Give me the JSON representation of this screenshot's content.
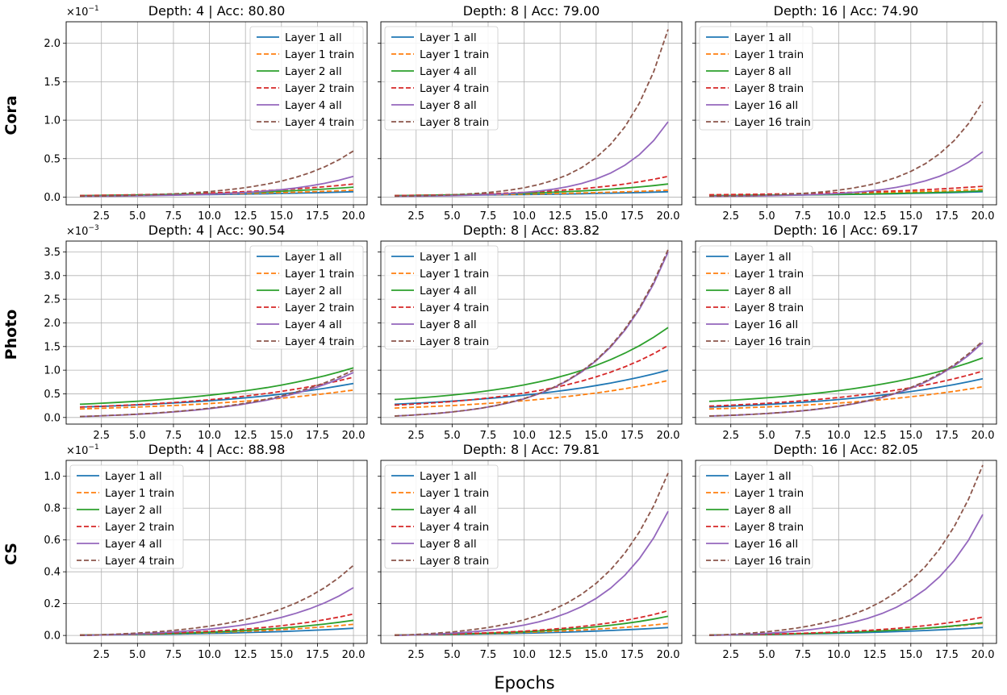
{
  "figure": {
    "xlabel": "Epochs",
    "row_labels": [
      "Cora",
      "Photo",
      "CS"
    ],
    "colors": {
      "layer_1_all": "#1f77b4",
      "layer_1_train": "#ff7f0e",
      "layer_mid_all": "#2ca02c",
      "layer_mid_train": "#d62728",
      "layer_last_all": "#9467bd",
      "layer_last_train": "#8c564b"
    }
  },
  "chart_data": [
    {
      "type": "line",
      "row": "Cora",
      "title": "Depth: 4 | Acc: 80.80",
      "scale_label": "×10^−1",
      "x_ticks": [
        "2.5",
        "5.0",
        "7.5",
        "10.0",
        "12.5",
        "15.0",
        "17.5",
        "20.0"
      ],
      "ylim": [
        -0.1,
        2.28
      ],
      "y_ticks": [
        0.0,
        0.5,
        1.0,
        1.5,
        2.0
      ],
      "y_tick_labels": [
        "0.0",
        "0.5",
        "1.0",
        "1.5",
        "2.0"
      ],
      "legend_pos": "upper-right",
      "series": [
        {
          "name": "Layer 1 all",
          "style": "solid",
          "color": "#1f77b4",
          "start": 0.02,
          "end": 0.07,
          "curve": 1.8
        },
        {
          "name": "Layer 1 train",
          "style": "dashed",
          "color": "#ff7f0e",
          "start": 0.02,
          "end": 0.09,
          "curve": 1.8
        },
        {
          "name": "Layer 2 all",
          "style": "solid",
          "color": "#2ca02c",
          "start": 0.02,
          "end": 0.13,
          "curve": 2.2
        },
        {
          "name": "Layer 2 train",
          "style": "dashed",
          "color": "#d62728",
          "start": 0.02,
          "end": 0.17,
          "curve": 2.2
        },
        {
          "name": "Layer 4 all",
          "style": "solid",
          "color": "#9467bd",
          "start": 0.01,
          "end": 0.27,
          "curve": 4
        },
        {
          "name": "Layer 4 train",
          "style": "dashed",
          "color": "#8c564b",
          "start": 0.01,
          "end": 0.6,
          "curve": 4
        }
      ]
    },
    {
      "type": "line",
      "row": "Cora",
      "title": "Depth: 8 | Acc: 79.00",
      "scale_label": "",
      "x_ticks": [
        "2.5",
        "5.0",
        "7.5",
        "10.0",
        "12.5",
        "15.0",
        "17.5",
        "20.0"
      ],
      "ylim": [
        -0.1,
        2.28
      ],
      "y_ticks": [
        0.0,
        0.5,
        1.0,
        1.5,
        2.0
      ],
      "y_tick_labels": [
        "",
        "",
        "",
        "",
        ""
      ],
      "legend_pos": "upper-left",
      "series": [
        {
          "name": "Layer 1 all",
          "style": "solid",
          "color": "#1f77b4",
          "start": 0.02,
          "end": 0.07,
          "curve": 1.8
        },
        {
          "name": "Layer 1 train",
          "style": "dashed",
          "color": "#ff7f0e",
          "start": 0.02,
          "end": 0.09,
          "curve": 1.8
        },
        {
          "name": "Layer 4 all",
          "style": "solid",
          "color": "#2ca02c",
          "start": 0.02,
          "end": 0.17,
          "curve": 2.5
        },
        {
          "name": "Layer 4 train",
          "style": "dashed",
          "color": "#d62728",
          "start": 0.02,
          "end": 0.27,
          "curve": 3
        },
        {
          "name": "Layer 8 all",
          "style": "solid",
          "color": "#9467bd",
          "start": 0.01,
          "end": 0.98,
          "curve": 5.5
        },
        {
          "name": "Layer 8 train",
          "style": "dashed",
          "color": "#8c564b",
          "start": 0.01,
          "end": 2.18,
          "curve": 5.5
        }
      ]
    },
    {
      "type": "line",
      "row": "Cora",
      "title": "Depth: 16 | Acc: 74.90",
      "scale_label": "",
      "x_ticks": [
        "2.5",
        "5.0",
        "7.5",
        "10.0",
        "12.5",
        "15.0",
        "17.5",
        "20.0"
      ],
      "ylim": [
        -0.1,
        2.28
      ],
      "y_ticks": [
        0.0,
        0.5,
        1.0,
        1.5,
        2.0
      ],
      "y_tick_labels": [
        "",
        "",
        "",
        "",
        ""
      ],
      "legend_pos": "upper-left",
      "series": [
        {
          "name": "Layer 1 all",
          "style": "solid",
          "color": "#1f77b4",
          "start": 0.02,
          "end": 0.07,
          "curve": 1.8
        },
        {
          "name": "Layer 1 train",
          "style": "dashed",
          "color": "#ff7f0e",
          "start": 0.03,
          "end": 0.1,
          "curve": 1.8
        },
        {
          "name": "Layer 8 all",
          "style": "solid",
          "color": "#2ca02c",
          "start": 0.02,
          "end": 0.08,
          "curve": 2
        },
        {
          "name": "Layer 8 train",
          "style": "dashed",
          "color": "#d62728",
          "start": 0.03,
          "end": 0.14,
          "curve": 2
        },
        {
          "name": "Layer 16 all",
          "style": "solid",
          "color": "#9467bd",
          "start": 0.01,
          "end": 0.59,
          "curve": 5
        },
        {
          "name": "Layer 16 train",
          "style": "dashed",
          "color": "#8c564b",
          "start": 0.01,
          "end": 1.24,
          "curve": 5
        }
      ]
    },
    {
      "type": "line",
      "row": "Photo",
      "title": "Depth: 4 | Acc: 90.54",
      "scale_label": "×10^−3",
      "x_ticks": [
        "2.5",
        "5.0",
        "7.5",
        "10.0",
        "12.5",
        "15.0",
        "17.5",
        "20.0"
      ],
      "ylim": [
        -0.14,
        3.73
      ],
      "y_ticks": [
        0.0,
        0.5,
        1.0,
        1.5,
        2.0,
        2.5,
        3.0,
        3.5
      ],
      "y_tick_labels": [
        "0.0",
        "0.5",
        "1.0",
        "1.5",
        "2.0",
        "2.5",
        "3.0",
        "3.5"
      ],
      "legend_pos": "upper-right",
      "series": [
        {
          "name": "Layer 1 all",
          "style": "solid",
          "color": "#1f77b4",
          "start": 0.22,
          "end": 0.72,
          "curve": 1.8
        },
        {
          "name": "Layer 1 train",
          "style": "dashed",
          "color": "#ff7f0e",
          "start": 0.18,
          "end": 0.58,
          "curve": 1.6
        },
        {
          "name": "Layer 2 all",
          "style": "solid",
          "color": "#2ca02c",
          "start": 0.28,
          "end": 1.05,
          "curve": 2
        },
        {
          "name": "Layer 2 train",
          "style": "dashed",
          "color": "#d62728",
          "start": 0.22,
          "end": 0.85,
          "curve": 2
        },
        {
          "name": "Layer 4 all",
          "style": "solid",
          "color": "#9467bd",
          "start": 0.02,
          "end": 0.95,
          "curve": 2.8
        },
        {
          "name": "Layer 4 train",
          "style": "dashed",
          "color": "#8c564b",
          "start": 0.02,
          "end": 1.0,
          "curve": 2.8
        }
      ]
    },
    {
      "type": "line",
      "row": "Photo",
      "title": "Depth: 8 | Acc: 83.82",
      "scale_label": "",
      "x_ticks": [
        "2.5",
        "5.0",
        "7.5",
        "10.0",
        "12.5",
        "15.0",
        "17.5",
        "20.0"
      ],
      "ylim": [
        -0.14,
        3.73
      ],
      "y_ticks": [
        0.0,
        0.5,
        1.0,
        1.5,
        2.0,
        2.5,
        3.0,
        3.5
      ],
      "y_tick_labels": [
        "",
        "",
        "",
        "",
        "",
        "",
        "",
        ""
      ],
      "legend_pos": "upper-left",
      "series": [
        {
          "name": "Layer 1 all",
          "style": "solid",
          "color": "#1f77b4",
          "start": 0.28,
          "end": 1.0,
          "curve": 1.8
        },
        {
          "name": "Layer 1 train",
          "style": "dashed",
          "color": "#ff7f0e",
          "start": 0.2,
          "end": 0.78,
          "curve": 1.8
        },
        {
          "name": "Layer 4 all",
          "style": "solid",
          "color": "#2ca02c",
          "start": 0.38,
          "end": 1.9,
          "curve": 2.5
        },
        {
          "name": "Layer 4 train",
          "style": "dashed",
          "color": "#d62728",
          "start": 0.26,
          "end": 1.52,
          "curve": 2.5
        },
        {
          "name": "Layer 8 all",
          "style": "solid",
          "color": "#9467bd",
          "start": 0.03,
          "end": 3.5,
          "curve": 4
        },
        {
          "name": "Layer 8 train",
          "style": "dashed",
          "color": "#8c564b",
          "start": 0.03,
          "end": 3.55,
          "curve": 4
        }
      ]
    },
    {
      "type": "line",
      "row": "Photo",
      "title": "Depth: 16 | Acc: 69.17",
      "scale_label": "",
      "x_ticks": [
        "2.5",
        "5.0",
        "7.5",
        "10.0",
        "12.5",
        "15.0",
        "17.5",
        "20.0"
      ],
      "ylim": [
        -0.14,
        3.73
      ],
      "y_ticks": [
        0.0,
        0.5,
        1.0,
        1.5,
        2.0,
        2.5,
        3.0,
        3.5
      ],
      "y_tick_labels": [
        "",
        "",
        "",
        "",
        "",
        "",
        "",
        ""
      ],
      "legend_pos": "upper-left",
      "series": [
        {
          "name": "Layer 1 all",
          "style": "solid",
          "color": "#1f77b4",
          "start": 0.22,
          "end": 0.82,
          "curve": 1.8
        },
        {
          "name": "Layer 1 train",
          "style": "dashed",
          "color": "#ff7f0e",
          "start": 0.18,
          "end": 0.65,
          "curve": 1.8
        },
        {
          "name": "Layer 8 all",
          "style": "solid",
          "color": "#2ca02c",
          "start": 0.34,
          "end": 1.26,
          "curve": 2
        },
        {
          "name": "Layer 8 train",
          "style": "dashed",
          "color": "#d62728",
          "start": 0.24,
          "end": 0.98,
          "curve": 2
        },
        {
          "name": "Layer 16 all",
          "style": "solid",
          "color": "#9467bd",
          "start": 0.03,
          "end": 1.58,
          "curve": 3.5
        },
        {
          "name": "Layer 16 train",
          "style": "dashed",
          "color": "#8c564b",
          "start": 0.03,
          "end": 1.62,
          "curve": 3.5
        }
      ]
    },
    {
      "type": "line",
      "row": "CS",
      "title": "Depth: 4 | Acc: 88.98",
      "scale_label": "×10^−1",
      "x_ticks": [
        "2.5",
        "5.0",
        "7.5",
        "10.0",
        "12.5",
        "15.0",
        "17.5",
        "20.0"
      ],
      "ylim": [
        -0.05,
        1.1
      ],
      "y_ticks": [
        0.0,
        0.2,
        0.4,
        0.6,
        0.8,
        1.0
      ],
      "y_tick_labels": [
        "0.0",
        "0.2",
        "0.4",
        "0.6",
        "0.8",
        "1.0"
      ],
      "legend_pos": "upper-left",
      "series": [
        {
          "name": "Layer 1 all",
          "style": "solid",
          "color": "#1f77b4",
          "start": 0.002,
          "end": 0.045,
          "curve": 2
        },
        {
          "name": "Layer 1 train",
          "style": "dashed",
          "color": "#ff7f0e",
          "start": 0.002,
          "end": 0.07,
          "curve": 2.2
        },
        {
          "name": "Layer 2 all",
          "style": "solid",
          "color": "#2ca02c",
          "start": 0.002,
          "end": 0.095,
          "curve": 2.5
        },
        {
          "name": "Layer 2 train",
          "style": "dashed",
          "color": "#d62728",
          "start": 0.002,
          "end": 0.135,
          "curve": 2.8
        },
        {
          "name": "Layer 4 all",
          "style": "solid",
          "color": "#9467bd",
          "start": 0.0,
          "end": 0.3,
          "curve": 3.5
        },
        {
          "name": "Layer 4 train",
          "style": "dashed",
          "color": "#8c564b",
          "start": 0.0,
          "end": 0.44,
          "curve": 3.5
        }
      ]
    },
    {
      "type": "line",
      "row": "CS",
      "title": "Depth: 8 | Acc: 79.81",
      "scale_label": "",
      "x_ticks": [
        "2.5",
        "5.0",
        "7.5",
        "10.0",
        "12.5",
        "15.0",
        "17.5",
        "20.0"
      ],
      "ylim": [
        -0.05,
        1.1
      ],
      "y_ticks": [
        0.0,
        0.2,
        0.4,
        0.6,
        0.8,
        1.0
      ],
      "y_tick_labels": [
        "",
        "",
        "",
        "",
        "",
        ""
      ],
      "legend_pos": "upper-left",
      "series": [
        {
          "name": "Layer 1 all",
          "style": "solid",
          "color": "#1f77b4",
          "start": 0.002,
          "end": 0.05,
          "curve": 2
        },
        {
          "name": "Layer 1 train",
          "style": "dashed",
          "color": "#ff7f0e",
          "start": 0.002,
          "end": 0.075,
          "curve": 2.2
        },
        {
          "name": "Layer 4 all",
          "style": "solid",
          "color": "#2ca02c",
          "start": 0.002,
          "end": 0.12,
          "curve": 2.8
        },
        {
          "name": "Layer 4 train",
          "style": "dashed",
          "color": "#d62728",
          "start": 0.002,
          "end": 0.155,
          "curve": 3
        },
        {
          "name": "Layer 8 all",
          "style": "solid",
          "color": "#9467bd",
          "start": 0.0,
          "end": 0.78,
          "curve": 4.5
        },
        {
          "name": "Layer 8 train",
          "style": "dashed",
          "color": "#8c564b",
          "start": 0.0,
          "end": 1.02,
          "curve": 4.2
        }
      ]
    },
    {
      "type": "line",
      "row": "CS",
      "title": "Depth: 16 | Acc: 82.05",
      "scale_label": "",
      "x_ticks": [
        "2.5",
        "5.0",
        "7.5",
        "10.0",
        "12.5",
        "15.0",
        "17.5",
        "20.0"
      ],
      "ylim": [
        -0.05,
        1.1
      ],
      "y_ticks": [
        0.0,
        0.2,
        0.4,
        0.6,
        0.8,
        1.0
      ],
      "y_tick_labels": [
        "",
        "",
        "",
        "",
        "",
        ""
      ],
      "legend_pos": "upper-left",
      "series": [
        {
          "name": "Layer 1 all",
          "style": "solid",
          "color": "#1f77b4",
          "start": 0.002,
          "end": 0.05,
          "curve": 2
        },
        {
          "name": "Layer 1 train",
          "style": "dashed",
          "color": "#ff7f0e",
          "start": 0.002,
          "end": 0.075,
          "curve": 2.2
        },
        {
          "name": "Layer 8 all",
          "style": "solid",
          "color": "#2ca02c",
          "start": 0.002,
          "end": 0.08,
          "curve": 2.5
        },
        {
          "name": "Layer 8 train",
          "style": "dashed",
          "color": "#d62728",
          "start": 0.002,
          "end": 0.115,
          "curve": 2.8
        },
        {
          "name": "Layer 16 all",
          "style": "solid",
          "color": "#9467bd",
          "start": 0.0,
          "end": 0.76,
          "curve": 4.5
        },
        {
          "name": "Layer 16 train",
          "style": "dashed",
          "color": "#8c564b",
          "start": 0.0,
          "end": 1.07,
          "curve": 4.2
        }
      ]
    }
  ]
}
